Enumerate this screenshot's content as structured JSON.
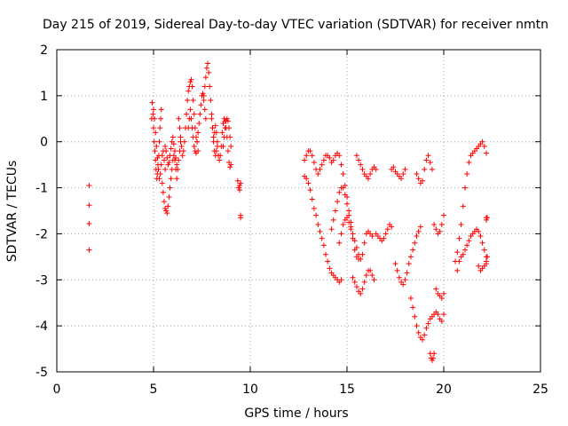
{
  "chart_data": {
    "type": "scatter",
    "title": "Day 215 of 2019, Sidereal Day-to-day VTEC variation (SDTVAR) for receiver nmtn",
    "xlabel": "GPS time / hours",
    "ylabel": "SDTVAR / TECUs",
    "xlim": [
      0,
      25
    ],
    "ylim": [
      -5,
      2
    ],
    "xticks": [
      "0",
      "5",
      "10",
      "15",
      "20",
      "25"
    ],
    "yticks": [
      "-5",
      "-4",
      "-3",
      "-2",
      "-1",
      "0",
      "1",
      "2"
    ],
    "grid": true,
    "marker": "+",
    "color": "#ff0000",
    "series": [
      {
        "name": "nmtn",
        "x": [
          1.67,
          1.67,
          1.67,
          1.67,
          4.9,
          4.93,
          4.97,
          5.0,
          5.03,
          5.07,
          5.1,
          5.13,
          5.17,
          5.2,
          5.23,
          5.27,
          5.3,
          5.33,
          5.37,
          5.4,
          5.0,
          5.05,
          5.1,
          5.15,
          5.2,
          5.25,
          5.3,
          5.35,
          5.4,
          5.45,
          5.5,
          5.55,
          5.6,
          5.45,
          5.5,
          5.55,
          5.6,
          5.65,
          5.7,
          5.75,
          5.8,
          5.85,
          5.9,
          5.95,
          6.0,
          6.05,
          6.1,
          6.15,
          6.2,
          5.6,
          5.65,
          5.7,
          5.75,
          5.8,
          5.85,
          5.9,
          5.95,
          6.0,
          6.05,
          6.1,
          6.15,
          6.2,
          6.25,
          6.3,
          6.35,
          6.4,
          6.3,
          6.35,
          6.4,
          6.45,
          6.5,
          6.55,
          6.6,
          6.65,
          6.7,
          6.75,
          6.8,
          6.85,
          6.9,
          6.95,
          7.0,
          7.05,
          7.1,
          7.15,
          7.2,
          7.25,
          7.3,
          6.8,
          6.85,
          6.9,
          6.95,
          7.0,
          7.05,
          7.1,
          7.15,
          7.2,
          7.25,
          7.3,
          7.35,
          7.4,
          7.45,
          7.5,
          7.55,
          7.6,
          7.65,
          7.7,
          7.6,
          7.65,
          7.7,
          7.75,
          7.8,
          7.85,
          7.9,
          7.95,
          8.0,
          8.05,
          8.1,
          8.15,
          8.2,
          8.25,
          8.3,
          8.0,
          8.05,
          8.1,
          8.15,
          8.2,
          8.25,
          8.3,
          8.35,
          8.4,
          8.45,
          8.5,
          8.55,
          8.6,
          8.65,
          8.7,
          8.75,
          8.8,
          8.85,
          8.9,
          8.95,
          9.0,
          8.6,
          8.65,
          8.7,
          8.75,
          8.8,
          8.85,
          8.9,
          8.95,
          9.0,
          9.35,
          9.4,
          9.45,
          9.5,
          9.5,
          9.5,
          9.45,
          12.8,
          12.9,
          13.0,
          13.1,
          13.2,
          13.3,
          13.4,
          13.5,
          13.6,
          13.7,
          13.8,
          13.9,
          14.0,
          14.1,
          14.2,
          14.3,
          14.4,
          14.5,
          14.6,
          14.7,
          12.8,
          12.9,
          13.0,
          13.1,
          13.2,
          13.3,
          13.4,
          13.5,
          13.6,
          13.7,
          13.8,
          13.9,
          14.0,
          14.1,
          14.2,
          14.3,
          14.4,
          14.5,
          14.6,
          14.7,
          14.8,
          14.9,
          15.0,
          15.1,
          15.2,
          14.2,
          14.3,
          14.4,
          14.5,
          14.6,
          14.7,
          14.8,
          14.9,
          15.0,
          15.1,
          15.2,
          15.3,
          15.4,
          15.5,
          15.6,
          14.6,
          14.7,
          14.8,
          14.9,
          15.0,
          15.1,
          15.2,
          15.3,
          15.4,
          15.5,
          15.6,
          15.7,
          15.8,
          15.9,
          16.0,
          16.1,
          16.2,
          16.3,
          15.3,
          15.4,
          15.5,
          15.6,
          15.7,
          15.8,
          15.9,
          16.0,
          16.1,
          16.2,
          16.3,
          16.4,
          15.5,
          15.6,
          15.7,
          15.8,
          15.9,
          16.0,
          16.1,
          16.2,
          16.3,
          16.4,
          16.5,
          16.5,
          16.6,
          16.7,
          16.8,
          16.9,
          17.0,
          17.1,
          17.2,
          17.3,
          17.3,
          17.4,
          17.5,
          17.6,
          17.7,
          17.8,
          17.9,
          18.0,
          17.5,
          17.6,
          17.7,
          17.8,
          17.9,
          18.0,
          18.1,
          18.2,
          18.3,
          18.4,
          18.5,
          18.6,
          18.7,
          18.8,
          18.3,
          18.4,
          18.5,
          18.6,
          18.7,
          18.8,
          18.9,
          19.0,
          19.1,
          19.2,
          19.3,
          19.4,
          19.5,
          19.6,
          19.7,
          19.8,
          19.9,
          20.0,
          18.6,
          18.7,
          18.8,
          18.9,
          19.0,
          19.1,
          19.2,
          19.3,
          19.4,
          19.5,
          19.6,
          19.7,
          19.8,
          19.9,
          20.0,
          19.3,
          19.35,
          19.4,
          19.45,
          19.5,
          19.6,
          19.7,
          19.8,
          19.9,
          20.0,
          20.6,
          20.7,
          20.8,
          20.9,
          21.0,
          21.1,
          21.2,
          21.3,
          21.4,
          21.5,
          21.6,
          21.7,
          21.8,
          21.9,
          22.0,
          22.1,
          22.2,
          20.7,
          20.8,
          20.9,
          21.0,
          21.1,
          21.2,
          21.3,
          21.4,
          21.5,
          21.6,
          21.7,
          21.8,
          21.9,
          22.0,
          22.1,
          22.2,
          21.8,
          21.9,
          22.0,
          22.1,
          22.2,
          22.2,
          22.2,
          22.2,
          22.25,
          22.25
        ],
        "y": [
          -0.95,
          -1.38,
          -1.78,
          -2.35,
          0.5,
          0.85,
          0.6,
          0.3,
          0.0,
          -0.2,
          -0.4,
          -0.6,
          -0.8,
          -0.7,
          -0.5,
          -0.3,
          0.0,
          0.3,
          0.5,
          0.7,
          0.7,
          0.5,
          0.2,
          -0.1,
          -0.35,
          -0.6,
          -0.8,
          -0.7,
          -0.5,
          -0.3,
          -0.2,
          -0.4,
          -0.6,
          -0.9,
          -1.1,
          -1.3,
          -1.45,
          -1.5,
          -1.55,
          -1.4,
          -1.2,
          -1.0,
          -0.8,
          -0.6,
          -0.4,
          -0.3,
          -0.4,
          -0.6,
          -0.8,
          -0.1,
          -0.2,
          -0.35,
          -0.5,
          -0.45,
          -0.3,
          -0.15,
          0.0,
          0.1,
          -0.05,
          -0.2,
          -0.35,
          -0.5,
          -0.6,
          -0.4,
          -0.2,
          0.0,
          0.5,
          0.3,
          0.1,
          -0.1,
          -0.3,
          -0.2,
          0.0,
          0.3,
          0.6,
          0.9,
          1.1,
          1.2,
          1.3,
          1.35,
          1.2,
          0.9,
          0.6,
          0.3,
          0.1,
          0.0,
          -0.2,
          0.3,
          0.5,
          0.7,
          0.5,
          0.3,
          0.1,
          -0.1,
          -0.2,
          -0.25,
          0.0,
          0.2,
          0.4,
          0.6,
          0.8,
          1.0,
          1.05,
          0.9,
          0.7,
          0.5,
          1.0,
          1.2,
          1.4,
          1.6,
          1.7,
          1.5,
          1.2,
          0.9,
          0.6,
          0.3,
          0.0,
          -0.2,
          -0.3,
          -0.2,
          0.0,
          0.5,
          0.3,
          0.1,
          0.2,
          0.35,
          0.2,
          -0.1,
          -0.3,
          -0.4,
          -0.3,
          -0.1,
          0.2,
          0.4,
          0.5,
          0.45,
          0.3,
          0.1,
          -0.2,
          -0.45,
          -0.55,
          -0.5,
          -0.1,
          0.1,
          0.3,
          0.45,
          0.5,
          0.45,
          0.3,
          0.1,
          -0.1,
          -0.85,
          -1.0,
          -1.05,
          -0.9,
          -1.6,
          -1.65,
          -0.95,
          -0.75,
          -0.8,
          -0.9,
          -1.05,
          -1.25,
          -1.45,
          -1.6,
          -1.8,
          -1.95,
          -2.1,
          -2.25,
          -2.45,
          -2.6,
          -2.75,
          -2.85,
          -2.9,
          -2.95,
          -3.0,
          -3.05,
          -3.0,
          -0.4,
          -0.3,
          -0.2,
          -0.2,
          -0.3,
          -0.45,
          -0.6,
          -0.7,
          -0.6,
          -0.5,
          -0.4,
          -0.3,
          -0.3,
          -0.35,
          -0.45,
          -0.4,
          -0.3,
          -0.25,
          -0.3,
          -0.5,
          -0.7,
          -0.95,
          -1.2,
          -1.5,
          -1.75,
          -1.9,
          -1.7,
          -1.5,
          -1.3,
          -1.1,
          -1.0,
          -1.0,
          -1.15,
          -1.35,
          -1.6,
          -1.85,
          -2.1,
          -2.35,
          -2.5,
          -2.55,
          -2.2,
          -2.0,
          -1.8,
          -1.7,
          -1.65,
          -1.75,
          -1.9,
          -2.0,
          -2.15,
          -2.3,
          -2.45,
          -2.55,
          -2.45,
          -2.2,
          -2.0,
          -1.95,
          -2.0,
          -2.05,
          -2.95,
          -3.05,
          -3.15,
          -3.25,
          -3.3,
          -3.2,
          -3.05,
          -2.9,
          -2.8,
          -2.8,
          -2.9,
          -3.0,
          -0.3,
          -0.4,
          -0.5,
          -0.6,
          -0.7,
          -0.75,
          -0.8,
          -0.7,
          -0.6,
          -0.55,
          -0.6,
          -2.0,
          -2.05,
          -2.1,
          -2.15,
          -2.1,
          -2.0,
          -1.9,
          -1.8,
          -1.85,
          -0.6,
          -0.55,
          -0.65,
          -0.7,
          -0.75,
          -0.8,
          -0.7,
          -0.6,
          -2.65,
          -2.8,
          -2.95,
          -3.05,
          -3.1,
          -3.0,
          -2.85,
          -2.65,
          -2.5,
          -2.35,
          -2.2,
          -2.05,
          -1.95,
          -1.85,
          -3.4,
          -3.6,
          -3.8,
          -4.0,
          -4.15,
          -4.25,
          -4.3,
          -4.2,
          -4.05,
          -3.95,
          -3.85,
          -3.8,
          -3.75,
          -3.7,
          -3.75,
          -3.85,
          -3.9,
          -3.75,
          -0.7,
          -0.8,
          -0.9,
          -0.85,
          -0.6,
          -0.4,
          -0.3,
          -0.45,
          -0.6,
          -1.8,
          -1.9,
          -2.0,
          -1.95,
          -1.8,
          -1.6,
          -4.6,
          -4.7,
          -4.75,
          -4.7,
          -4.6,
          -3.2,
          -3.3,
          -3.35,
          -3.4,
          -3.3,
          -2.6,
          -2.4,
          -2.1,
          -1.8,
          -1.4,
          -1.0,
          -0.7,
          -0.45,
          -0.3,
          -0.25,
          -0.2,
          -0.15,
          -0.1,
          -0.05,
          0.0,
          -0.1,
          -0.25,
          -2.8,
          -2.6,
          -2.5,
          -2.45,
          -2.35,
          -2.25,
          -2.15,
          -2.05,
          -2.0,
          -1.95,
          -1.9,
          -1.95,
          -2.05,
          -2.2,
          -2.35,
          -2.5,
          -2.7,
          -2.8,
          -2.75,
          -2.7,
          -2.65,
          -1.65,
          -1.7,
          -2.6,
          -2.5,
          -1.65
        ]
      }
    ]
  }
}
